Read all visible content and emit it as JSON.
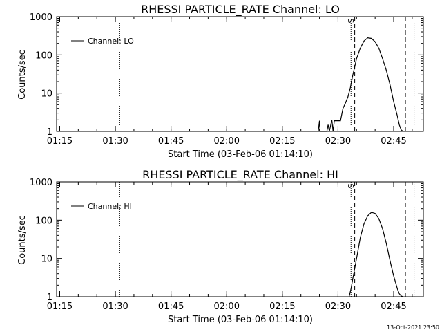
{
  "chart_data": [
    {
      "type": "line",
      "title": "RHESSI PARTICLE_RATE Channel: LO",
      "xlabel": "Start Time (03-Feb-06 01:14:10)",
      "ylabel": "Counts/sec",
      "x_tick_labels": [
        "01:15",
        "01:30",
        "01:45",
        "02:00",
        "02:15",
        "02:30",
        "02:45"
      ],
      "y_tick_labels": [
        "1",
        "10",
        "100",
        "1000"
      ],
      "yscale": "log",
      "xlim": [
        "01:14:10",
        "02:53:00"
      ],
      "ylim": [
        1,
        1000
      ],
      "legend": {
        "entry": "Channel: LO",
        "position": "top-left"
      },
      "marker_label": "S",
      "vlines_dotted": [
        "01:31:10",
        "02:33:30",
        "02:50:30"
      ],
      "vlines_dashed": [
        "02:34:30",
        "02:48:10"
      ],
      "series": [
        {
          "x": [
            "02:24:40",
            "02:25:00",
            "02:25:10",
            "02:27:00",
            "02:27:20",
            "02:27:40",
            "02:28:20",
            "02:28:40",
            "02:29:00",
            "02:30:00",
            "02:30:40",
            "02:31:20",
            "02:32:00",
            "02:32:40",
            "02:33:20",
            "02:34:00",
            "02:35:00",
            "02:36:00",
            "02:37:00",
            "02:38:00",
            "02:39:00",
            "02:40:00",
            "02:41:00",
            "02:42:00",
            "02:43:00",
            "02:44:00",
            "02:45:00",
            "02:46:00",
            "02:46:30",
            "02:47:00",
            "02:47:30"
          ],
          "y": [
            1,
            1.9,
            1,
            1,
            1.5,
            1,
            2,
            1,
            1.9,
            1.9,
            1.9,
            4,
            5.5,
            8,
            14,
            30,
            80,
            150,
            230,
            280,
            270,
            220,
            150,
            80,
            40,
            17,
            6,
            2.5,
            1.5,
            1.1,
            1
          ]
        }
      ]
    },
    {
      "type": "line",
      "title": "RHESSI PARTICLE_RATE Channel: HI",
      "xlabel": "Start Time (03-Feb-06 01:14:10)",
      "ylabel": "Counts/sec",
      "x_tick_labels": [
        "01:15",
        "01:30",
        "01:45",
        "02:00",
        "02:15",
        "02:30",
        "02:45"
      ],
      "y_tick_labels": [
        "1",
        "10",
        "100",
        "1000"
      ],
      "yscale": "log",
      "xlim": [
        "01:14:10",
        "02:53:00"
      ],
      "ylim": [
        1,
        1000
      ],
      "legend": {
        "entry": "Channel: HI",
        "position": "top-left"
      },
      "marker_label": "S",
      "vlines_dotted": [
        "01:31:10",
        "02:33:30",
        "02:50:30"
      ],
      "vlines_dashed": [
        "02:34:30",
        "02:48:10"
      ],
      "series": [
        {
          "x": [
            "02:33:00",
            "02:33:30",
            "02:34:00",
            "02:35:00",
            "02:36:00",
            "02:37:00",
            "02:38:00",
            "02:39:00",
            "02:40:00",
            "02:41:00",
            "02:42:00",
            "02:43:00",
            "02:44:00",
            "02:45:00",
            "02:46:00",
            "02:46:30",
            "02:47:00",
            "02:47:30"
          ],
          "y": [
            1,
            1.6,
            3,
            10,
            35,
            80,
            130,
            160,
            150,
            110,
            60,
            25,
            9,
            3.5,
            1.6,
            1.2,
            1.05,
            1
          ]
        }
      ]
    }
  ],
  "footer": {
    "timestamp": "13-Oct-2021 23:50"
  }
}
